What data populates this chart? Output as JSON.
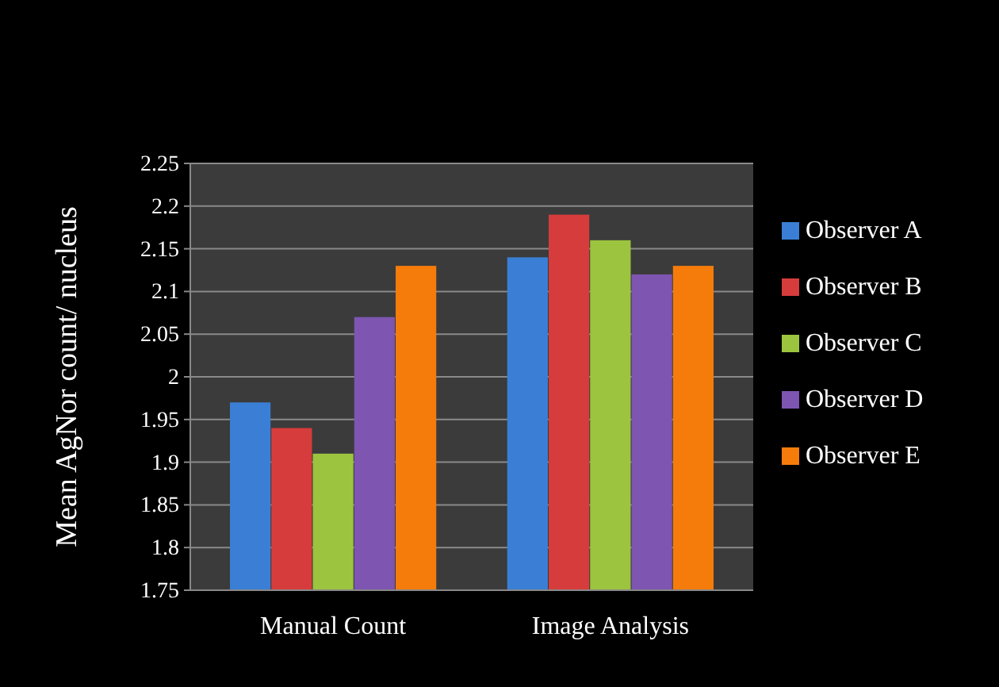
{
  "chart_data": {
    "type": "bar",
    "ylabel": "Mean AgNor count/ nucleus",
    "categories": [
      "Manual Count",
      "Image Analysis"
    ],
    "series": [
      {
        "name": "Observer A",
        "color": "#3a7fd5",
        "values": [
          1.97,
          2.14
        ]
      },
      {
        "name": "Observer B",
        "color": "#d63c3c",
        "values": [
          1.94,
          2.19
        ]
      },
      {
        "name": "Observer C",
        "color": "#9cc43e",
        "values": [
          1.91,
          2.16
        ]
      },
      {
        "name": "Observer D",
        "color": "#7e55b0",
        "values": [
          2.07,
          2.12
        ]
      },
      {
        "name": "Observer E",
        "color": "#f57c0a",
        "values": [
          2.13,
          2.13
        ]
      }
    ],
    "ylim": [
      1.75,
      2.25
    ],
    "yticks": [
      1.75,
      1.8,
      1.85,
      1.9,
      1.95,
      2,
      2.05,
      2.1,
      2.15,
      2.2,
      2.25
    ],
    "grid": "y",
    "legend": "right"
  }
}
